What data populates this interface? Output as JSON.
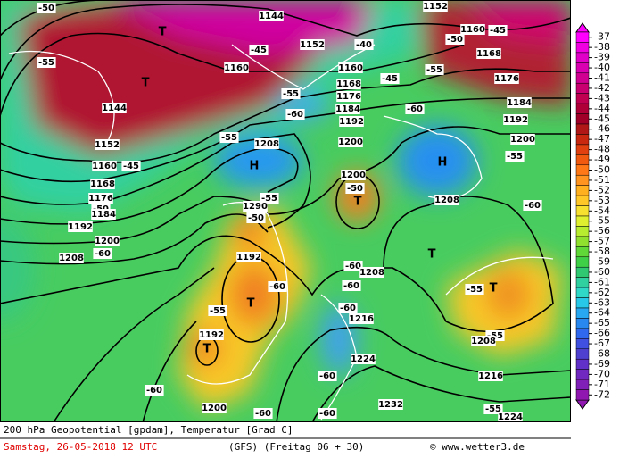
{
  "map": {
    "labels": [
      "-50",
      "1144",
      "1152",
      "T",
      "1160",
      "-45",
      "-50",
      "1168",
      "-40",
      "1152",
      "-45",
      "-55",
      "1160",
      "1160",
      "-55",
      "1176",
      "T",
      "-45",
      "1168",
      "-55",
      "1176",
      "1144",
      "1184",
      "-60",
      "-60",
      "1184",
      "1192",
      "1192",
      "-55",
      "1208",
      "1200",
      "1200",
      "1152",
      "-55",
      "1160",
      "-45",
      "H",
      "H",
      "1200",
      "-50",
      "T",
      "-55",
      "1168",
      "1176",
      "-50",
      "1184",
      "1208",
      "-60",
      "1290",
      "-50",
      "1192",
      "1200",
      "-60",
      "1208",
      "T",
      "1192",
      "-60",
      "1208",
      "-60",
      "-60",
      "-55",
      "T",
      "T",
      "-60",
      "-55",
      "1216",
      "1192",
      "-55",
      "1208",
      "T",
      "1224",
      "1216",
      "-60",
      "-60",
      "1232",
      "1200",
      "-60",
      "-60",
      "-55",
      "1224"
    ]
  },
  "colorbar": {
    "levels": [
      -37,
      -38,
      -39,
      -40,
      -41,
      -42,
      -43,
      -44,
      -45,
      -46,
      -47,
      -48,
      -49,
      -50,
      -51,
      -52,
      -53,
      -54,
      -55,
      -56,
      -57,
      -58,
      -59,
      -60,
      -61,
      -62,
      -63,
      -64,
      -65,
      -66,
      -67,
      -68,
      -69,
      -70,
      -71,
      -72
    ],
    "colors": [
      "#ff00ff",
      "#f000e0",
      "#e000c8",
      "#d800b0",
      "#d00090",
      "#c80070",
      "#c00050",
      "#b00038",
      "#a00028",
      "#b01818",
      "#c82810",
      "#e04010",
      "#f05a10",
      "#ff7818",
      "#ff9420",
      "#ffb020",
      "#ffc828",
      "#f8e030",
      "#e0f030",
      "#b8ec30",
      "#90e030",
      "#60d838",
      "#40d048",
      "#30c870",
      "#30d0a0",
      "#30d8c8",
      "#28c8e8",
      "#28a8f0",
      "#2888f0",
      "#3068f0",
      "#4050e0",
      "#5040d0",
      "#6030c8",
      "#7028c0",
      "#8020b8",
      "#9018b0"
    ]
  },
  "footer": {
    "product": "200 hPa Geopotential [gpdam], Temperatur [Grad C]",
    "date": "Samstag, 26-05-2018  12 UTC",
    "model": "(GFS)  (Freitag 06 + 30)",
    "source": "© www.wetter3.de"
  }
}
